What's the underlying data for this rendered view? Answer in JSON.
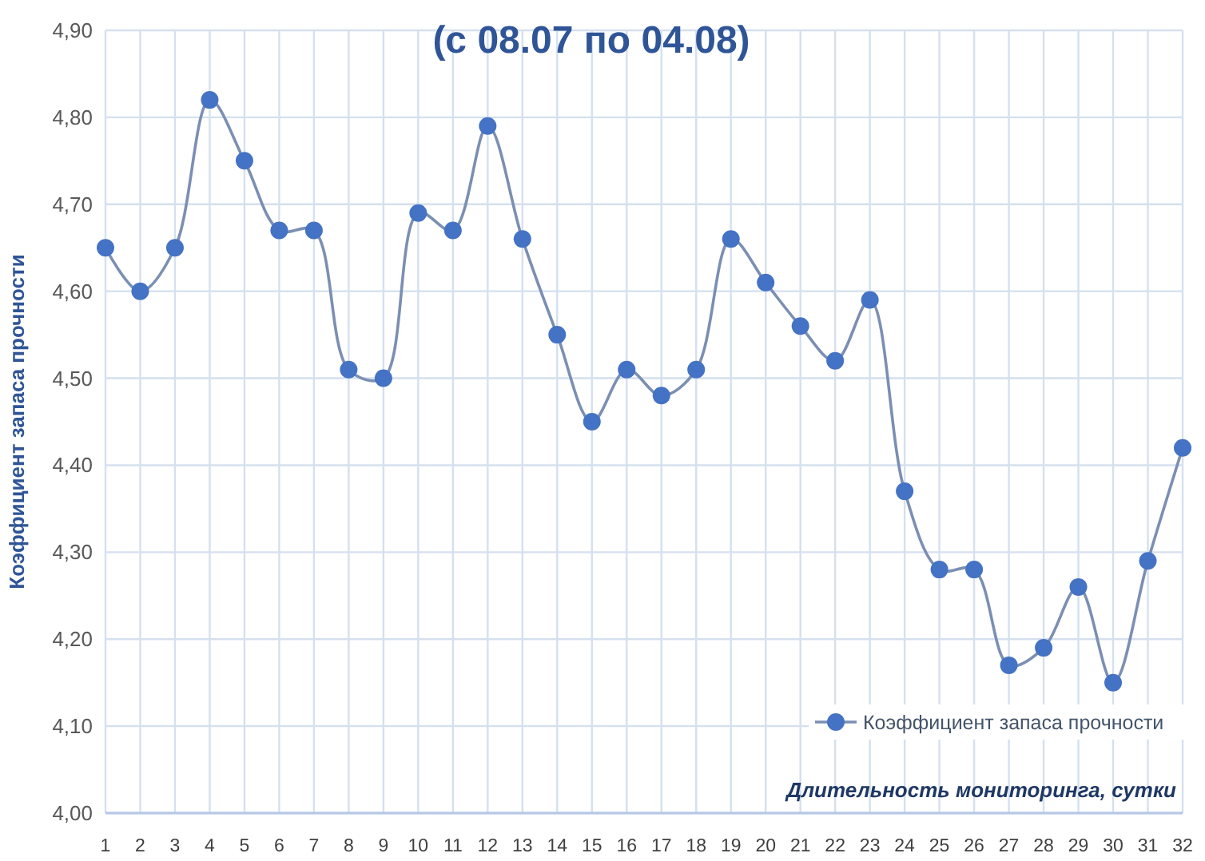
{
  "chart_data": {
    "type": "line",
    "title": "(с 08.07 по 04.08)",
    "xlabel": "Длительность мониторинга, сутки",
    "ylabel": "Коэффициент запаса прочности",
    "x": [
      1,
      2,
      3,
      4,
      5,
      6,
      7,
      8,
      9,
      10,
      11,
      12,
      13,
      14,
      15,
      16,
      17,
      18,
      19,
      20,
      21,
      22,
      23,
      24,
      25,
      26,
      27,
      28,
      29,
      30,
      31,
      32
    ],
    "xlim": [
      1,
      32
    ],
    "xticks": [
      1,
      2,
      3,
      4,
      5,
      6,
      7,
      8,
      9,
      10,
      11,
      12,
      13,
      14,
      15,
      16,
      17,
      18,
      19,
      20,
      21,
      22,
      23,
      24,
      25,
      26,
      27,
      28,
      29,
      30,
      31,
      32
    ],
    "series": [
      {
        "name": "Коэффициент запаса прочности",
        "color": "#4472c4",
        "values": [
          4.65,
          4.6,
          4.65,
          4.82,
          4.75,
          4.67,
          4.67,
          4.51,
          4.5,
          4.69,
          4.67,
          4.79,
          4.66,
          4.55,
          4.45,
          4.51,
          4.48,
          4.51,
          4.66,
          4.61,
          4.56,
          4.52,
          4.59,
          4.37,
          4.28,
          4.28,
          4.17,
          4.19,
          4.26,
          4.15,
          4.29,
          4.42
        ]
      }
    ],
    "ylim": [
      4.0,
      4.9
    ],
    "yticks": [
      {
        "value": 4.0,
        "label": "4,00"
      },
      {
        "value": 4.1,
        "label": "4,10"
      },
      {
        "value": 4.2,
        "label": "4,20"
      },
      {
        "value": 4.3,
        "label": "4,30"
      },
      {
        "value": 4.4,
        "label": "4,40"
      },
      {
        "value": 4.5,
        "label": "4,50"
      },
      {
        "value": 4.6,
        "label": "4,60"
      },
      {
        "value": 4.7,
        "label": "4,70"
      },
      {
        "value": 4.8,
        "label": "4,80"
      },
      {
        "value": 4.9,
        "label": "4,90"
      }
    ],
    "grid": true,
    "legend": "bottom right",
    "marker": "circle",
    "line_style": "solid"
  }
}
